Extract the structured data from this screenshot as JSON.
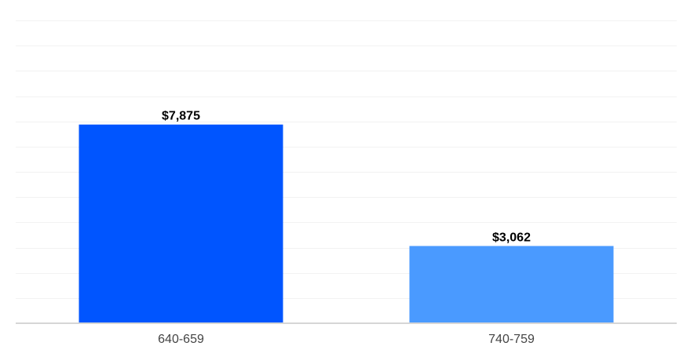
{
  "chart_data": {
    "type": "bar",
    "categories": [
      "640-659",
      "740-759"
    ],
    "values": [
      7875,
      3062
    ],
    "value_labels": [
      "$7,875",
      "$3,062"
    ],
    "bar_colors": [
      "#0055ff",
      "#4a9aff"
    ],
    "ylim": [
      0,
      12500
    ],
    "grid_step": 1000,
    "grid": true,
    "title": "",
    "xlabel": "",
    "ylabel": ""
  }
}
